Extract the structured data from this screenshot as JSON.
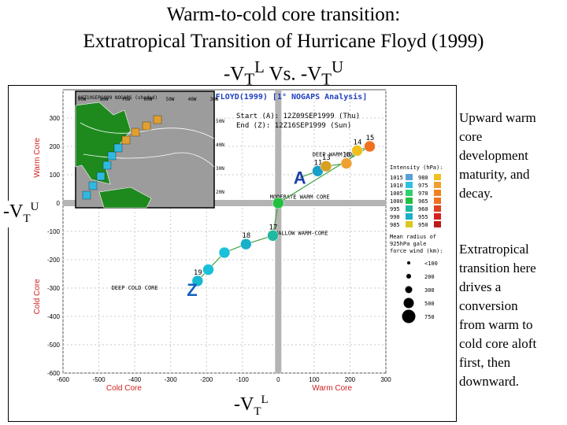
{
  "slide": {
    "title_line1": "Warm-to-cold core transition:",
    "title_line2": "Extratropical Transition of Hurricane Floyd (1999)",
    "title_line3_parts": [
      "-V",
      "T",
      "L",
      " Vs. -V",
      "T",
      "U"
    ],
    "side_text_upper": [
      "Upward warm",
      "core",
      "development",
      "maturity, and",
      "decay."
    ],
    "side_text_lower": [
      "Extratropical",
      "transition here",
      "drives a",
      "conversion",
      "from warm to",
      "cold core aloft",
      "first, then",
      "downward."
    ],
    "axis_left_parts": [
      "-V",
      "T",
      "U"
    ],
    "axis_bottom_parts": [
      "-V",
      "T",
      "L"
    ]
  },
  "chart_data": {
    "type": "scatter",
    "title": "FLOYD(1999) [1° NOGAPS Analysis]",
    "start_label": "Start (A): 12Z09SEP1999 (Thu)",
    "end_label": "End (Z): 12Z16SEP1999 (Sun)",
    "xlabel_left": "Cold Core",
    "xlabel_right": "Warm Core",
    "ylabel_top": "Warm Core",
    "ylabel_bottom": "Cold Core",
    "xlim": [
      -600,
      300
    ],
    "ylim": [
      -600,
      400
    ],
    "x_ticks": [
      "-600",
      "-500",
      "-400",
      "-300",
      "-200",
      "-100",
      "0",
      "100",
      "200",
      "300"
    ],
    "y_ticks": [
      "-600",
      "-500",
      "-400",
      "-300",
      "-200",
      "-100",
      "0",
      "100",
      "200",
      "300"
    ],
    "quadrant_labels": {
      "deep_warm": "DEEP WARM CORE",
      "moderate_warm": "MODERATE WARM CORE",
      "shallow_warm": "SHALLOW WARM-CORE",
      "deep_cold": "DEEP COLD CORE"
    },
    "points": [
      {
        "x": 60,
        "y": 90,
        "label": "A",
        "color": "#1a3fa8"
      },
      {
        "x": 110,
        "y": 113,
        "label": "11",
        "color": "#1a9fc8"
      },
      {
        "x": 133,
        "y": 130,
        "label": "13",
        "color": "#d8a020"
      },
      {
        "x": 190,
        "y": 140,
        "label": "16",
        "color": "#f0a030"
      },
      {
        "x": 220,
        "y": 185,
        "label": "14",
        "color": "#f0c020"
      },
      {
        "x": 255,
        "y": 200,
        "label": "15",
        "color": "#f07020"
      },
      {
        "x": 0,
        "y": 0,
        "label": "",
        "color": "#20c040"
      },
      {
        "x": -15,
        "y": -115,
        "label": "17",
        "color": "#20b8a0"
      },
      {
        "x": -90,
        "y": -145,
        "label": "18",
        "color": "#18b0c8"
      },
      {
        "x": -150,
        "y": -175,
        "label": "",
        "color": "#18c0d8"
      },
      {
        "x": -195,
        "y": -235,
        "label": "",
        "color": "#18c0d8"
      },
      {
        "x": -225,
        "y": -275,
        "label": "19",
        "color": "#18b8d0"
      },
      {
        "x": -240,
        "y": -305,
        "label": "Z",
        "color": "#1060c0"
      }
    ],
    "legend": {
      "title": "Intensity (hPa):",
      "intensity": [
        {
          "pressure": "1015",
          "color": "#5aa0d8"
        },
        {
          "pressure": "1010",
          "color": "#30c0e0"
        },
        {
          "pressure": "1005",
          "color": "#30d070"
        },
        {
          "pressure": "1000",
          "color": "#20c040"
        },
        {
          "pressure": "995",
          "color": "#20b8a0"
        },
        {
          "pressure": "990",
          "color": "#18b0c8"
        },
        {
          "pressure": "985",
          "color": "#d8c820"
        },
        {
          "pressure": "980",
          "color": "#f0c020"
        },
        {
          "pressure": "975",
          "color": "#f0a030"
        },
        {
          "pressure": "970",
          "color": "#f08020"
        },
        {
          "pressure": "965",
          "color": "#f07020"
        },
        {
          "pressure": "960",
          "color": "#e04020"
        },
        {
          "pressure": "955",
          "color": "#d82020"
        },
        {
          "pressure": "950",
          "color": "#c01818"
        }
      ],
      "wind_title": "Mean radius of 925hPa gale force wind (km):",
      "wind": [
        "<100",
        "200",
        "300",
        "500",
        "750"
      ]
    },
    "inset_map": {
      "label": "00Z10SEP1999 NOGAPS (shaded)",
      "lon_labels": [
        "90W",
        "80W",
        "70W",
        "60W",
        "50W",
        "40W",
        "30W"
      ],
      "lat_labels": [
        "50N",
        "40N",
        "30N",
        "20N"
      ]
    }
  }
}
